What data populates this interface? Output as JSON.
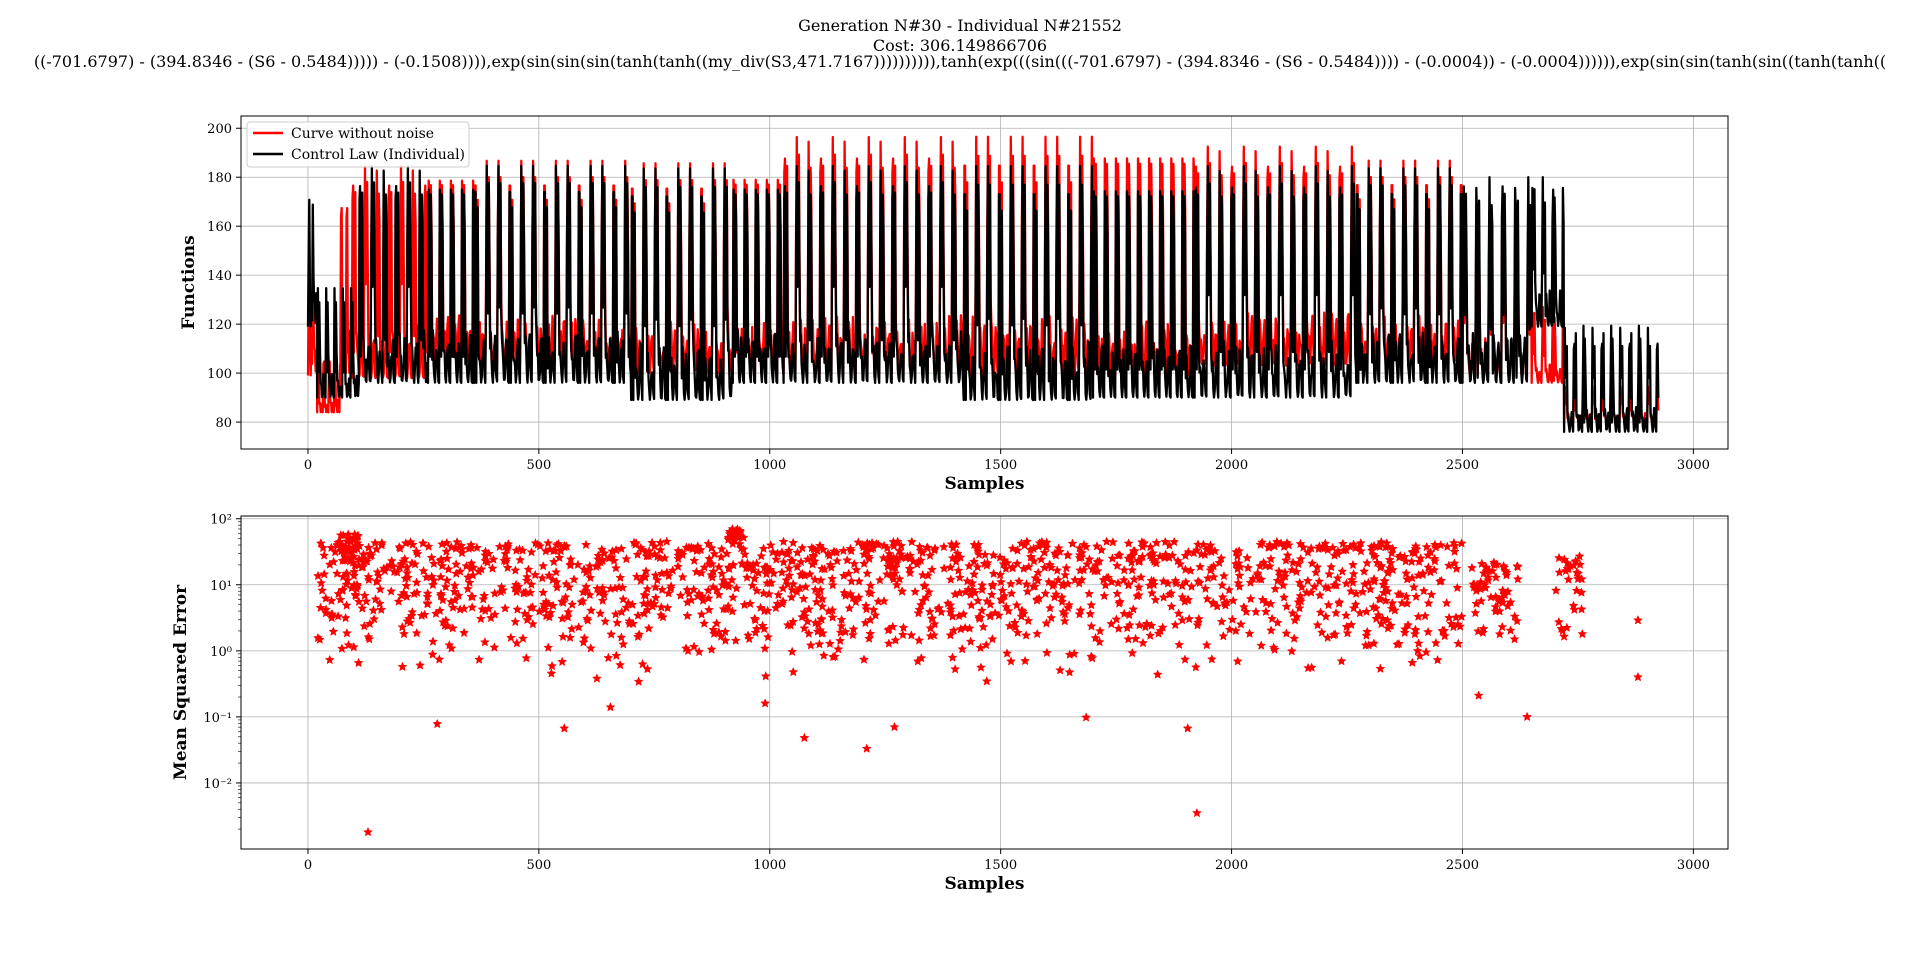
{
  "figure": {
    "title_line1": "Generation N#30 - Individual N#21552",
    "title_line2": "Cost: 306.149866706",
    "title_line3": "((-701.6797) - (394.8346 - (S6 - 0.5484))))) - (-0.1508)))),exp(sin(sin(sin(tanh(tanh((my_div(S3,471.7167)))))))))),tanh(exp(((sin(((-701.6797) - (394.8346 - (S6 - 0.5484)))) - (-0.0004)) - (-0.0004)))))),exp(sin(sin(tanh(sin((tanh(tanh(("
  },
  "colors": {
    "curve_red": "#ff0000",
    "control_black": "#000000",
    "grid": "#b0b0b0"
  },
  "chart_data": [
    {
      "type": "line",
      "xlabel": "Samples",
      "ylabel": "Functions",
      "xlim": [
        -145,
        3075
      ],
      "ylim": [
        69,
        205
      ],
      "xticks": [
        0,
        500,
        1000,
        1500,
        2000,
        2500,
        3000
      ],
      "yticks": [
        80,
        100,
        120,
        140,
        160,
        180,
        200
      ],
      "grid": true,
      "legend_position": "top-left",
      "series": [
        {
          "name": "Curve without noise",
          "color": "#ff0000",
          "segments": [
            {
              "x0": 0,
              "x1": 20,
              "low": 99,
              "high": 172,
              "period": 10
            },
            {
              "x0": 20,
              "x1": 70,
              "low": 84,
              "high": 108,
              "period": 12
            },
            {
              "x0": 70,
              "x1": 95,
              "low": 100,
              "high": 178,
              "period": 12
            },
            {
              "x0": 95,
              "x1": 260,
              "low": 98,
              "high": 185,
              "period": 26
            },
            {
              "x0": 260,
              "x1": 360,
              "low": 105,
              "high": 188,
              "period": 24
            },
            {
              "x0": 360,
              "x1": 700,
              "low": 103,
              "high": 188,
              "period": 25
            },
            {
              "x0": 700,
              "x1": 920,
              "low": 100,
              "high": 187,
              "period": 25
            },
            {
              "x0": 920,
              "x1": 1030,
              "low": 100,
              "high": 189,
              "period": 24
            },
            {
              "x0": 1030,
              "x1": 1420,
              "low": 100,
              "high": 197,
              "period": 26
            },
            {
              "x0": 1420,
              "x1": 1700,
              "low": 99,
              "high": 198,
              "period": 25
            },
            {
              "x0": 1700,
              "x1": 1920,
              "low": 99,
              "high": 199,
              "period": 24
            },
            {
              "x0": 1920,
              "x1": 2270,
              "low": 103,
              "high": 193,
              "period": 26
            },
            {
              "x0": 2270,
              "x1": 2500,
              "low": 104,
              "high": 188,
              "period": 25
            },
            {
              "x0": 2500,
              "x1": 2650,
              "low": 98,
              "high": 166,
              "period": 28
            },
            {
              "x0": 2650,
              "x1": 2720,
              "low": 96,
              "high": 127,
              "period": 22
            },
            {
              "x0": 2720,
              "x1": 2925,
              "low": 80,
              "high": 95,
              "period": 20
            }
          ]
        },
        {
          "name": "Control Law (Individual)",
          "color": "#000000",
          "segments": [
            {
              "x0": 0,
              "x1": 20,
              "low": 119,
              "high": 184,
              "period": 10
            },
            {
              "x0": 20,
              "x1": 110,
              "low": 90,
              "high": 135,
              "period": 18
            },
            {
              "x0": 110,
              "x1": 260,
              "low": 96,
              "high": 185,
              "period": 26
            },
            {
              "x0": 260,
              "x1": 360,
              "low": 96,
              "high": 185,
              "period": 24
            },
            {
              "x0": 360,
              "x1": 700,
              "low": 96,
              "high": 186,
              "period": 25
            },
            {
              "x0": 700,
              "x1": 920,
              "low": 89,
              "high": 185,
              "period": 25
            },
            {
              "x0": 920,
              "x1": 1030,
              "low": 96,
              "high": 185,
              "period": 24
            },
            {
              "x0": 1030,
              "x1": 1420,
              "low": 96,
              "high": 185,
              "period": 26
            },
            {
              "x0": 1420,
              "x1": 1700,
              "low": 89,
              "high": 186,
              "period": 25
            },
            {
              "x0": 1700,
              "x1": 1920,
              "low": 90,
              "high": 185,
              "period": 24
            },
            {
              "x0": 1920,
              "x1": 2270,
              "low": 90,
              "high": 185,
              "period": 26
            },
            {
              "x0": 2270,
              "x1": 2500,
              "low": 96,
              "high": 185,
              "period": 25
            },
            {
              "x0": 2500,
              "x1": 2650,
              "low": 96,
              "high": 180,
              "period": 28
            },
            {
              "x0": 2650,
              "x1": 2720,
              "low": 119,
              "high": 180,
              "period": 22
            },
            {
              "x0": 2720,
              "x1": 2925,
              "low": 76,
              "high": 120,
              "period": 20
            }
          ]
        }
      ]
    },
    {
      "type": "scatter",
      "xlabel": "Samples",
      "ylabel": "Mean Squared Error",
      "yscale": "log",
      "xlim": [
        -145,
        3075
      ],
      "ylim": [
        0.001,
        110
      ],
      "xticks": [
        0,
        500,
        1000,
        1500,
        2000,
        2500,
        3000
      ],
      "yticks": [
        0.01,
        0.1,
        1,
        10,
        100
      ],
      "ytick_labels": [
        "10⁻²",
        "10⁻¹",
        "10⁰",
        "10¹",
        "10²"
      ],
      "grid": true,
      "marker": "star",
      "color": "#ff0000",
      "series": [
        {
          "values_range": [
            0.0018,
            70
          ],
          "outliers": [
            {
              "x": 130,
              "y": 0.0018
            },
            {
              "x": 280,
              "y": 0.078
            },
            {
              "x": 555,
              "y": 0.067
            },
            {
              "x": 1075,
              "y": 0.048
            },
            {
              "x": 1210,
              "y": 0.033
            },
            {
              "x": 1270,
              "y": 0.07
            },
            {
              "x": 1685,
              "y": 0.098
            },
            {
              "x": 1905,
              "y": 0.067
            },
            {
              "x": 1925,
              "y": 0.0035
            },
            {
              "x": 2640,
              "y": 0.1
            },
            {
              "x": 2880,
              "y": 0.4
            },
            {
              "x": 2880,
              "y": 2.9
            },
            {
              "x": 2535,
              "y": 0.21
            },
            {
              "x": 990,
              "y": 0.16
            },
            {
              "x": 655,
              "y": 0.14
            }
          ],
          "clusters": [
            {
              "x0": 20,
              "x1": 2500,
              "count": 1500,
              "ymin": 0.3,
              "ymax": 45
            },
            {
              "x0": 70,
              "x1": 110,
              "count": 40,
              "ymin": 5,
              "ymax": 60
            },
            {
              "x0": 910,
              "x1": 945,
              "count": 30,
              "ymin": 30,
              "ymax": 70
            },
            {
              "x0": 2520,
              "x1": 2620,
              "count": 60,
              "ymin": 1,
              "ymax": 22
            },
            {
              "x0": 2700,
              "x1": 2760,
              "count": 30,
              "ymin": 1,
              "ymax": 30
            }
          ]
        }
      ]
    }
  ]
}
